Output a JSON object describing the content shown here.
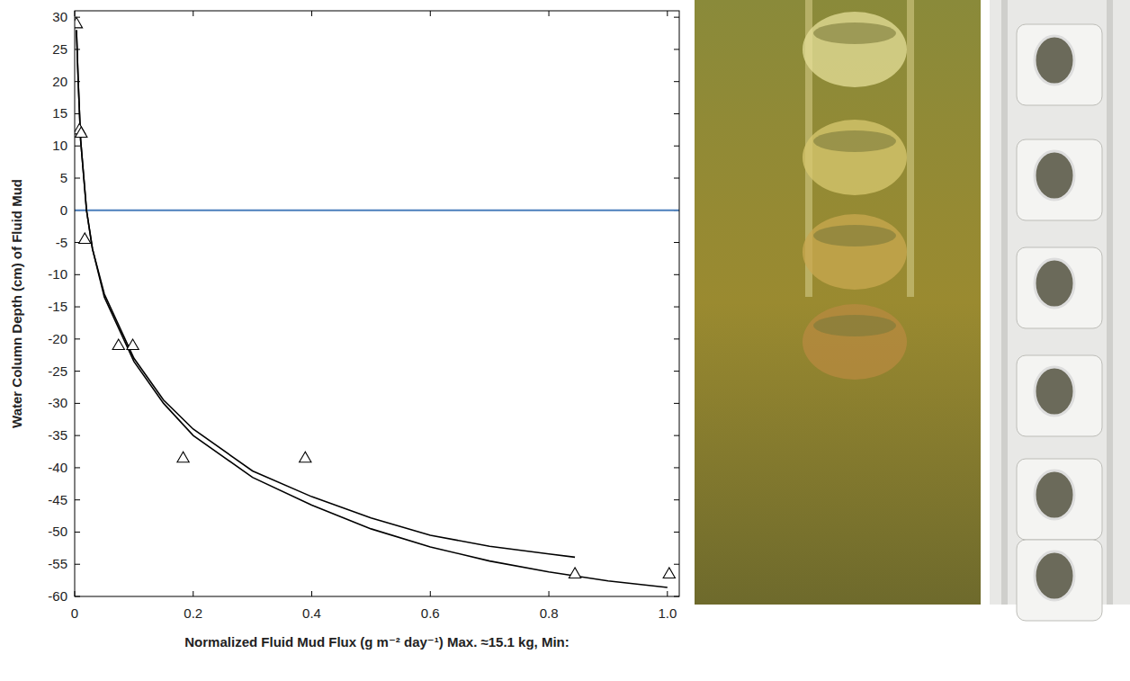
{
  "chart_data": {
    "type": "scatter",
    "y_label": "Water Column Depth (cm) of Fluid Mud",
    "x_label": "Normalized Fluid Mud Flux (g m⁻² day⁻¹)   Max. ≈15.1 kg, Min:",
    "xlim": [
      0,
      1.02
    ],
    "ylim": [
      -60,
      31
    ],
    "xticks": [
      0,
      0.2,
      0.4,
      0.6,
      0.8,
      {
        "value": 1,
        "label": "1.0"
      }
    ],
    "yticks": [
      -60,
      -55,
      -50,
      -45,
      -40,
      -35,
      -30,
      -25,
      -20,
      -15,
      -10,
      -5,
      0,
      5,
      10,
      15,
      20,
      25,
      30
    ],
    "grid": false,
    "hlines": [
      {
        "value": 0,
        "color": "#4a7ebb"
      }
    ],
    "series": [
      {
        "type": "scatter",
        "marker": "triangle",
        "color": "#000000",
        "x": [
          0.003,
          0.008,
          0.011,
          0.017,
          0.074,
          0.098,
          0.183,
          0.389,
          0.844,
          1.003
        ],
        "values": [
          29,
          12.5,
          12,
          -4.5,
          -21,
          -21,
          -38.5,
          -38.5,
          -56.5,
          -56.5
        ]
      },
      {
        "type": "line",
        "line_style": "solid",
        "color": "#000000",
        "x": [
          0.003,
          0.006,
          0.01,
          0.02,
          0.03,
          0.05,
          0.1,
          0.15,
          0.2,
          0.3,
          0.4,
          0.5,
          0.6,
          0.7,
          0.8,
          0.844
        ],
        "values": [
          28,
          20,
          11,
          0,
          -6,
          -13,
          -23,
          -29.5,
          -34,
          -40.5,
          -44.5,
          -47.8,
          -50.5,
          -52.2,
          -53.4,
          -53.9
        ]
      },
      {
        "type": "line",
        "line_style": "solid",
        "color": "#000000",
        "x": [
          0.003,
          0.006,
          0.01,
          0.02,
          0.03,
          0.05,
          0.1,
          0.15,
          0.2,
          0.3,
          0.4,
          0.5,
          0.6,
          0.7,
          0.8,
          0.9,
          1.0
        ],
        "values": [
          28,
          20,
          11,
          0,
          -6,
          -13.5,
          -23.5,
          -30,
          -35,
          -41.5,
          -45.8,
          -49.5,
          -52.3,
          -54.5,
          -56.2,
          -57.6,
          -58.6
        ]
      }
    ]
  }
}
